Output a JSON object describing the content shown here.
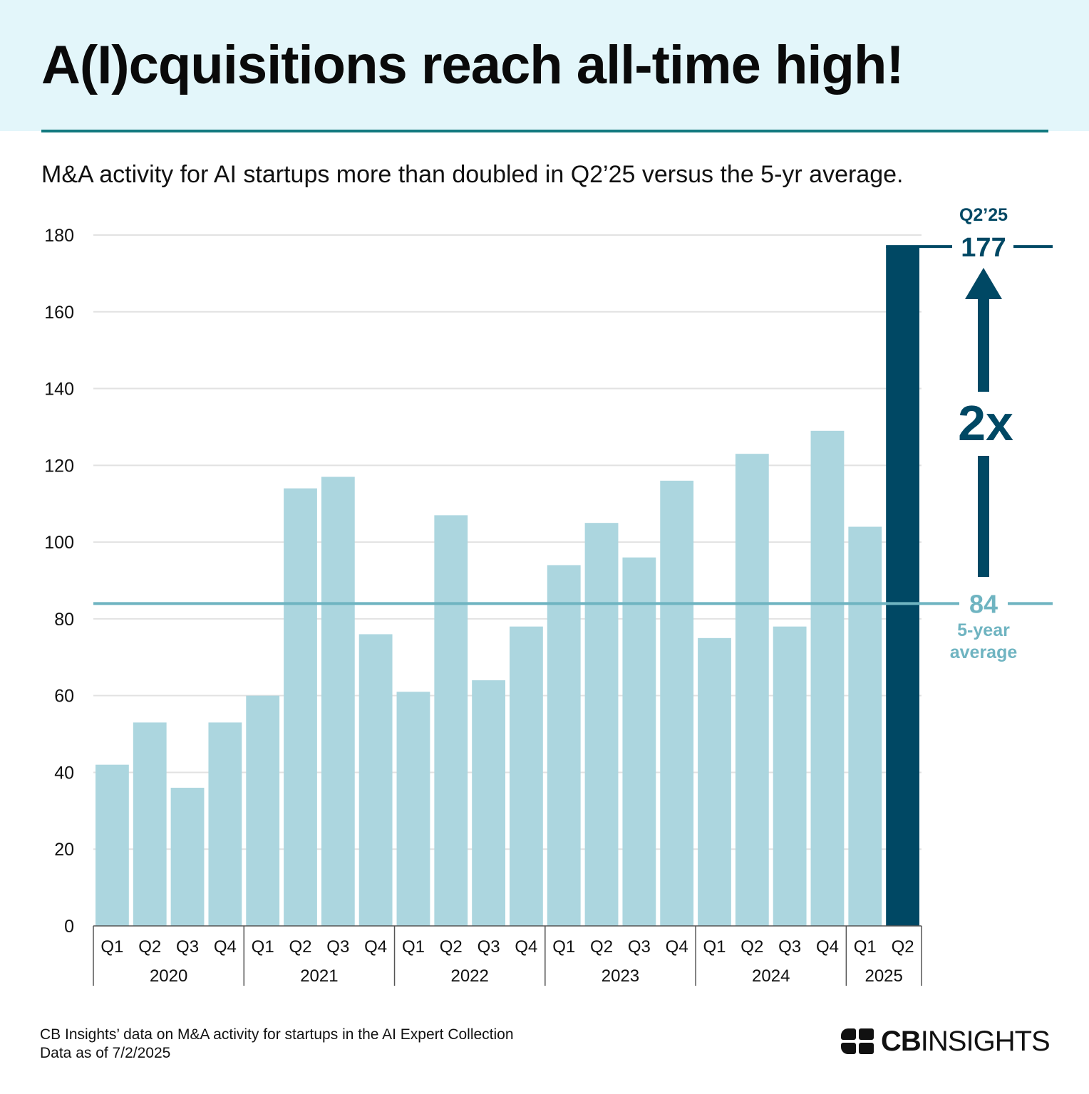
{
  "header": {
    "title": "A(I)cquisitions reach all-time high!",
    "subtitle": "M&A activity for AI startups more than doubled in Q2’25 versus the 5-yr average."
  },
  "chart_data": {
    "type": "bar",
    "title": "A(I)cquisitions reach all-time high!",
    "subtitle": "M&A activity for AI startups more than doubled in Q2’25 versus the 5-yr average.",
    "xlabel": "",
    "ylabel": "",
    "ylim": [
      0,
      180
    ],
    "yticks": [
      0,
      20,
      40,
      60,
      80,
      100,
      120,
      140,
      160,
      180
    ],
    "grid": true,
    "categories": [
      "Q1",
      "Q2",
      "Q3",
      "Q4",
      "Q1",
      "Q2",
      "Q3",
      "Q4",
      "Q1",
      "Q2",
      "Q3",
      "Q4",
      "Q1",
      "Q2",
      "Q3",
      "Q4",
      "Q1",
      "Q2",
      "Q3",
      "Q4",
      "Q1",
      "Q2"
    ],
    "year_groups": [
      {
        "label": "2020",
        "count": 4
      },
      {
        "label": "2021",
        "count": 4
      },
      {
        "label": "2022",
        "count": 4
      },
      {
        "label": "2023",
        "count": 4
      },
      {
        "label": "2024",
        "count": 4
      },
      {
        "label": "2025",
        "count": 2
      }
    ],
    "values": [
      42,
      53,
      36,
      53,
      60,
      114,
      117,
      76,
      61,
      107,
      64,
      78,
      94,
      105,
      96,
      116,
      75,
      123,
      78,
      129,
      104,
      177
    ],
    "highlight_index": 21,
    "colors": {
      "bar": "#acd6df",
      "highlight": "#004864",
      "average_line": "#6fb4c1",
      "grid": "#e2e2e2",
      "axis": "#555555"
    },
    "average": {
      "value": 84,
      "label": "84",
      "caption_line1": "5-year",
      "caption_line2": "average"
    },
    "peak": {
      "value": 177,
      "label": "177",
      "caption": "Q2’25"
    },
    "multiplier_label": "2x"
  },
  "footer": {
    "line1": "CB Insights’ data on M&A activity for startups in the AI Expert Collection",
    "line2": "Data as of 7/2/2025"
  },
  "logo": {
    "bold": "CB",
    "regular": "INSIGHTS",
    "icon": "cb-insights-logo-icon"
  }
}
